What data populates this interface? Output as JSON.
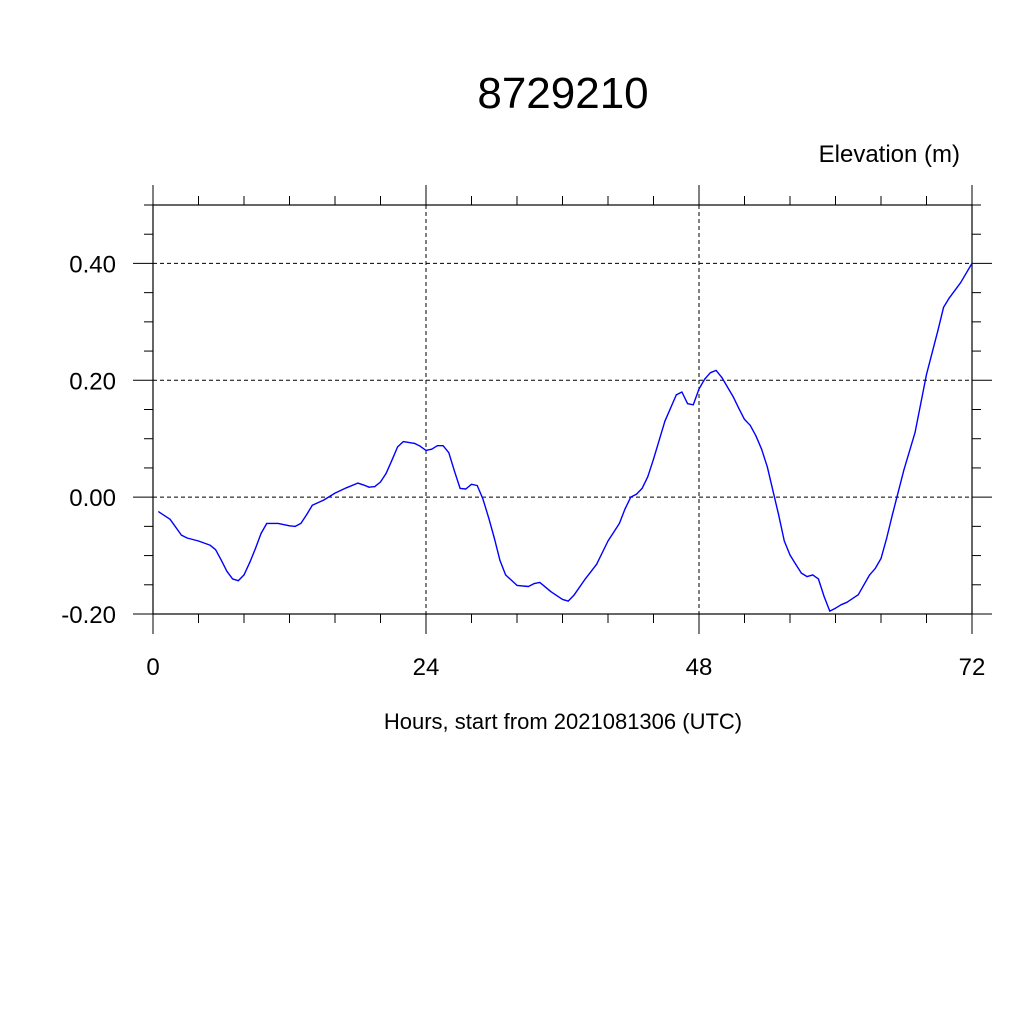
{
  "chart_data": {
    "type": "line",
    "title": "8729210",
    "ylabel": "Elevation (m)",
    "xlabel": "Hours, start from 2021081306 (UTC)",
    "xlim": [
      0,
      72
    ],
    "ylim": [
      -0.2,
      0.5
    ],
    "x_ticks": [
      0,
      24,
      48,
      72
    ],
    "x_tick_labels": [
      "0",
      "24",
      "48",
      "72"
    ],
    "y_ticks": [
      -0.2,
      0.0,
      0.2,
      0.4
    ],
    "y_tick_labels": [
      "-0.20",
      "0.00",
      "0.20",
      "0.40"
    ],
    "grid": true,
    "line_color": "#0000ff",
    "series": [
      {
        "x": [
          0.5,
          1.5,
          2.5,
          3,
          4,
          5,
          5.5,
          6,
          6.5,
          7,
          7.5,
          8,
          8.5,
          9,
          9.5,
          10,
          11,
          12,
          12.5,
          13,
          13.5,
          14,
          15,
          16,
          17,
          18,
          18.5,
          19,
          19.5,
          20,
          20.5,
          21,
          21.5,
          22,
          23,
          23.5,
          24,
          24.5,
          25,
          25.5,
          26,
          26.5,
          27,
          27.5,
          28,
          28.5,
          29,
          29.5,
          30,
          30.5,
          31,
          32,
          33,
          33.5,
          34,
          35,
          36,
          36.5,
          37,
          38,
          39,
          40,
          40.5,
          41,
          41.5,
          42,
          42.5,
          43,
          43.5,
          44,
          45,
          46,
          46.5,
          47,
          47.5,
          48,
          48.5,
          49,
          49.5,
          50,
          51,
          51.5,
          52,
          52.5,
          53,
          53.5,
          54,
          55,
          55.5,
          56,
          56.5,
          57,
          57.5,
          58,
          58.5,
          59,
          59.5,
          60,
          60.5,
          61,
          62,
          63,
          63.5,
          64,
          64.5,
          65,
          66,
          67,
          68,
          69,
          69.5,
          70,
          71,
          72
        ],
        "values": [
          -0.025,
          -0.038,
          -0.065,
          -0.07,
          -0.075,
          -0.082,
          -0.09,
          -0.108,
          -0.127,
          -0.14,
          -0.143,
          -0.133,
          -0.112,
          -0.088,
          -0.062,
          -0.045,
          -0.045,
          -0.049,
          -0.05,
          -0.045,
          -0.03,
          -0.014,
          -0.005,
          0.007,
          0.016,
          0.024,
          0.021,
          0.017,
          0.018,
          0.026,
          0.041,
          0.063,
          0.086,
          0.095,
          0.092,
          0.087,
          0.08,
          0.082,
          0.088,
          0.088,
          0.076,
          0.045,
          0.015,
          0.014,
          0.022,
          0.02,
          -0.003,
          -0.035,
          -0.07,
          -0.108,
          -0.133,
          -0.151,
          -0.153,
          -0.148,
          -0.146,
          -0.162,
          -0.175,
          -0.178,
          -0.168,
          -0.14,
          -0.115,
          -0.075,
          -0.06,
          -0.045,
          -0.02,
          0.0,
          0.005,
          0.015,
          0.035,
          0.065,
          0.13,
          0.175,
          0.18,
          0.16,
          0.158,
          0.185,
          0.202,
          0.213,
          0.217,
          0.205,
          0.172,
          0.152,
          0.133,
          0.123,
          0.105,
          0.082,
          0.052,
          -0.03,
          -0.075,
          -0.099,
          -0.115,
          -0.13,
          -0.136,
          -0.133,
          -0.14,
          -0.17,
          -0.195,
          -0.19,
          -0.184,
          -0.18,
          -0.167,
          -0.133,
          -0.122,
          -0.105,
          -0.07,
          -0.03,
          0.046,
          0.111,
          0.21,
          0.285,
          0.325,
          0.341,
          0.367,
          0.4
        ]
      }
    ]
  }
}
